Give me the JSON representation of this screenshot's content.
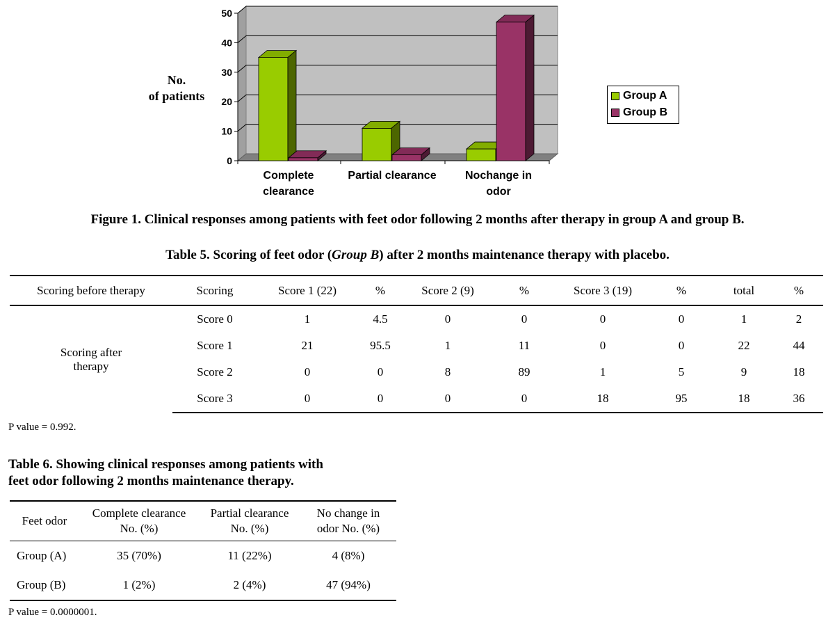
{
  "chart_data": {
    "type": "bar",
    "title": "",
    "xlabel": "",
    "ylabel": "No. of patients",
    "ylim": [
      0,
      50
    ],
    "yticks": [
      0,
      10,
      20,
      30,
      40,
      50
    ],
    "categories": [
      "Complete clearance",
      "Partial clearance",
      "Nochange in odor"
    ],
    "series": [
      {
        "name": "Group A",
        "values": [
          35,
          11,
          4
        ],
        "color": "#99cc00"
      },
      {
        "name": "Group B",
        "values": [
          1,
          2,
          47
        ],
        "color": "#993366"
      }
    ],
    "grid": true,
    "legend": "right",
    "three_d": true
  },
  "chart_text": {
    "ylabel_line1": "No.",
    "ylabel_line2": "of patients",
    "cat1_line1": "Complete",
    "cat1_line2": "clearance",
    "cat2_line1": "Partial clearance",
    "cat3_line1": "Nochange in",
    "cat3_line2": "odor",
    "legend_a": "Group A",
    "legend_b": "Group B"
  },
  "figure_caption": "Figure 1. Clinical responses among patients with feet odor following 2 months after therapy in group A and group B.",
  "table5": {
    "caption_prefix": "Table 5. Scoring of feet odor (",
    "caption_italic": "Group B",
    "caption_suffix": ") after 2 months maintenance therapy with placebo.",
    "headers": [
      "Scoring before therapy",
      "Scoring",
      "Score 1 (22)",
      "%",
      "Score 2 (9)",
      "%",
      "Score 3 (19)",
      "%",
      "total",
      "%"
    ],
    "row_group_line1": "Scoring after",
    "row_group_line2": "therapy",
    "rows": [
      [
        "Score 0",
        "1",
        "4.5",
        "0",
        "0",
        "0",
        "0",
        "1",
        "2"
      ],
      [
        "Score 1",
        "21",
        "95.5",
        "1",
        "11",
        "0",
        "0",
        "22",
        "44"
      ],
      [
        "Score 2",
        "0",
        "0",
        "8",
        "89",
        "1",
        "5",
        "9",
        "18"
      ],
      [
        "Score 3",
        "0",
        "0",
        "0",
        "0",
        "18",
        "95",
        "18",
        "36"
      ]
    ],
    "p_value": "P value = 0.992."
  },
  "table6": {
    "caption_line1": "Table 6. Showing clinical responses among patients with",
    "caption_line2": "feet odor following 2 months maintenance therapy.",
    "headers": [
      {
        "line1": "Feet odor",
        "line2": ""
      },
      {
        "line1": "Complete clearance",
        "line2": "No. (%)"
      },
      {
        "line1": "Partial clearance",
        "line2": "No. (%)"
      },
      {
        "line1": "No change in",
        "line2": "odor No. (%)"
      }
    ],
    "rows": [
      [
        "Group (A)",
        "35 (70%)",
        "11 (22%)",
        "4 (8%)"
      ],
      [
        "Group (B)",
        "1 (2%)",
        "2 (4%)",
        "47 (94%)"
      ]
    ],
    "p_value": "P value = 0.0000001."
  }
}
